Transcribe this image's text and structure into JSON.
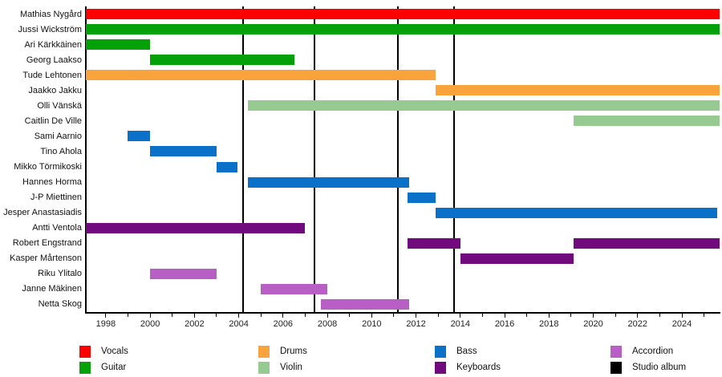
{
  "chart_data": {
    "type": "gantt-timeline",
    "title": "",
    "x_domain": [
      1997.1,
      2025.7
    ],
    "x_major_ticks": [
      1998,
      2000,
      2002,
      2004,
      2006,
      2008,
      2010,
      2012,
      2014,
      2016,
      2018,
      2020,
      2022,
      2024
    ],
    "x_minor_tick_years": {
      "start": 1998,
      "end": 2025,
      "step": 1
    },
    "album_lines": [
      2004.2,
      2007.4,
      2011.2,
      2013.7
    ],
    "roles": {
      "Vocals": "#ff0000",
      "Guitar": "#04a208",
      "Drums": "#f8a33b",
      "Violin": "#96ca90",
      "Bass": "#0b70c8",
      "Keyboards": "#700a7d",
      "Accordion": "#b85fc5",
      "Studio album": "#000000"
    },
    "members": [
      {
        "name": "Mathias Nygård",
        "role": "Vocals",
        "spans": [
          [
            1997.1,
            2025.7
          ]
        ]
      },
      {
        "name": "Jussi Wickström",
        "role": "Guitar",
        "spans": [
          [
            1997.1,
            2025.7
          ]
        ]
      },
      {
        "name": "Ari Kärkkäinen",
        "role": "Guitar",
        "spans": [
          [
            1997.1,
            2000.0
          ]
        ]
      },
      {
        "name": "Georg Laakso",
        "role": "Guitar",
        "spans": [
          [
            2000.0,
            2006.5
          ]
        ]
      },
      {
        "name": "Tude Lehtonen",
        "role": "Drums",
        "spans": [
          [
            1997.1,
            2012.9
          ]
        ]
      },
      {
        "name": "Jaakko Jakku",
        "role": "Drums",
        "spans": [
          [
            2012.9,
            2025.7
          ]
        ]
      },
      {
        "name": "Olli Vänskä",
        "role": "Violin",
        "spans": [
          [
            2004.4,
            2025.7
          ]
        ]
      },
      {
        "name": "Caitlin De Ville",
        "role": "Violin",
        "spans": [
          [
            2019.1,
            2025.7
          ]
        ]
      },
      {
        "name": "Sami Aarnio",
        "role": "Bass",
        "spans": [
          [
            1999.0,
            2000.0
          ]
        ]
      },
      {
        "name": "Tino Ahola",
        "role": "Bass",
        "spans": [
          [
            2000.0,
            2003.0
          ]
        ]
      },
      {
        "name": "Mikko Törmikoski",
        "role": "Bass",
        "spans": [
          [
            2003.0,
            2003.95
          ]
        ]
      },
      {
        "name": "Hannes Horma",
        "role": "Bass",
        "spans": [
          [
            2004.4,
            2011.7
          ]
        ]
      },
      {
        "name": "J-P Miettinen",
        "role": "Bass",
        "spans": [
          [
            2011.6,
            2012.9
          ]
        ]
      },
      {
        "name": "Jesper Anastasiadis",
        "role": "Bass",
        "spans": [
          [
            2012.9,
            2025.6
          ]
        ]
      },
      {
        "name": "Antti Ventola",
        "role": "Keyboards",
        "spans": [
          [
            1997.1,
            2007.0
          ]
        ]
      },
      {
        "name": "Robert Engstrand",
        "role": "Keyboards",
        "spans": [
          [
            2011.6,
            2014.0
          ],
          [
            2019.1,
            2025.7
          ]
        ]
      },
      {
        "name": "Kasper Mårtenson",
        "role": "Keyboards",
        "spans": [
          [
            2014.0,
            2019.1
          ]
        ]
      },
      {
        "name": "Riku Ylitalo",
        "role": "Accordion",
        "spans": [
          [
            2000.0,
            2003.0
          ]
        ]
      },
      {
        "name": "Janne Mäkinen",
        "role": "Accordion",
        "spans": [
          [
            2005.0,
            2008.0
          ]
        ]
      },
      {
        "name": "Netta Skog",
        "role": "Accordion",
        "spans": [
          [
            2007.7,
            2011.7
          ]
        ]
      }
    ],
    "legend": {
      "items": [
        "Vocals",
        "Guitar",
        "Drums",
        "Violin",
        "Bass",
        "Keyboards",
        "Accordion",
        "Studio album"
      ],
      "position": "bottom",
      "columns": 4
    },
    "axes": {
      "grid": false,
      "spines": [
        "left",
        "bottom"
      ]
    }
  }
}
